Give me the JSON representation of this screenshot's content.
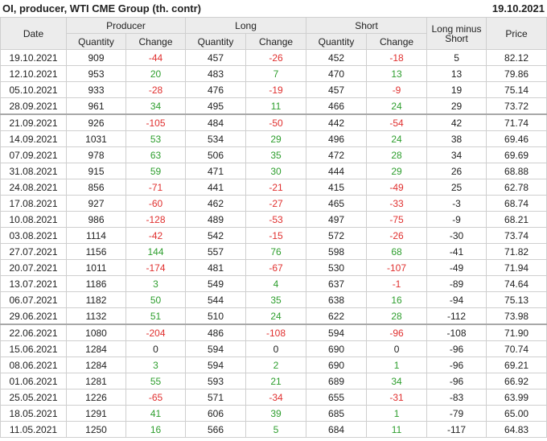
{
  "header": {
    "title": "OI, producer, WTI CME Group (th. contr)",
    "date": "19.10.2021"
  },
  "table": {
    "columns": [
      "Date",
      "Producer",
      "Long",
      "Short",
      "Long minus Short",
      "Price"
    ],
    "subcolumns": [
      "Quantity",
      "Change",
      "Quantity",
      "Change",
      "Quantity",
      "Change"
    ],
    "rows": [
      [
        "19.10.2021",
        909,
        -44,
        457,
        -26,
        452,
        -18,
        5,
        "82.12"
      ],
      [
        "12.10.2021",
        953,
        20,
        483,
        7,
        470,
        13,
        13,
        "79.86"
      ],
      [
        "05.10.2021",
        933,
        -28,
        476,
        -19,
        457,
        -9,
        19,
        "75.14"
      ],
      [
        "28.09.2021",
        961,
        34,
        495,
        11,
        466,
        24,
        29,
        "73.72"
      ],
      [
        "21.09.2021",
        926,
        -105,
        484,
        -50,
        442,
        -54,
        42,
        "71.74"
      ],
      [
        "14.09.2021",
        1031,
        53,
        534,
        29,
        496,
        24,
        38,
        "69.46"
      ],
      [
        "07.09.2021",
        978,
        63,
        506,
        35,
        472,
        28,
        34,
        "69.69"
      ],
      [
        "31.08.2021",
        915,
        59,
        471,
        30,
        444,
        29,
        26,
        "68.88"
      ],
      [
        "24.08.2021",
        856,
        -71,
        441,
        -21,
        415,
        -49,
        25,
        "62.78"
      ],
      [
        "17.08.2021",
        927,
        -60,
        462,
        -27,
        465,
        -33,
        -3,
        "68.74"
      ],
      [
        "10.08.2021",
        986,
        -128,
        489,
        -53,
        497,
        -75,
        -9,
        "68.21"
      ],
      [
        "03.08.2021",
        1114,
        -42,
        542,
        -15,
        572,
        -26,
        -30,
        "73.74"
      ],
      [
        "27.07.2021",
        1156,
        144,
        557,
        76,
        598,
        68,
        -41,
        "71.82"
      ],
      [
        "20.07.2021",
        1011,
        -174,
        481,
        -67,
        530,
        -107,
        -49,
        "71.94"
      ],
      [
        "13.07.2021",
        1186,
        3,
        549,
        4,
        637,
        -1,
        -89,
        "74.64"
      ],
      [
        "06.07.2021",
        1182,
        50,
        544,
        35,
        638,
        16,
        -94,
        "75.13"
      ],
      [
        "29.06.2021",
        1132,
        51,
        510,
        24,
        622,
        28,
        -112,
        "73.98"
      ],
      [
        "22.06.2021",
        1080,
        -204,
        486,
        -108,
        594,
        -96,
        -108,
        "71.90"
      ],
      [
        "15.06.2021",
        1284,
        0,
        594,
        0,
        690,
        0,
        -96,
        "70.74"
      ],
      [
        "08.06.2021",
        1284,
        3,
        594,
        2,
        690,
        1,
        -96,
        "69.21"
      ],
      [
        "01.06.2021",
        1281,
        55,
        593,
        21,
        689,
        34,
        -96,
        "66.92"
      ],
      [
        "25.05.2021",
        1226,
        -65,
        571,
        -34,
        655,
        -31,
        -83,
        "63.99"
      ],
      [
        "18.05.2021",
        1291,
        41,
        606,
        39,
        685,
        1,
        -79,
        "65.00"
      ],
      [
        "11.05.2021",
        1250,
        16,
        566,
        5,
        684,
        11,
        -117,
        "64.83"
      ]
    ]
  }
}
